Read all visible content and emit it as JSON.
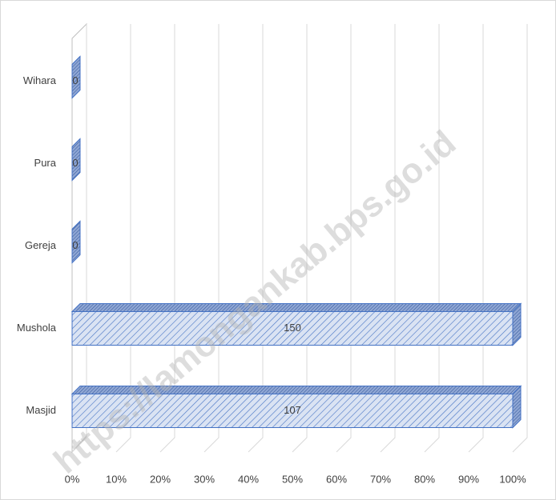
{
  "chart_data": {
    "type": "bar",
    "orientation": "horizontal",
    "stacking": "percent",
    "categories": [
      "Masjid",
      "Mushola",
      "Gereja",
      "Pura",
      "Wihara"
    ],
    "series": [
      {
        "color": "#4472c4",
        "values": [
          107,
          150,
          0,
          0,
          0
        ]
      }
    ],
    "xlim": [
      0,
      100
    ],
    "xticks": [
      {
        "value": 0,
        "label": "0%"
      },
      {
        "value": 10,
        "label": "10%"
      },
      {
        "value": 20,
        "label": "20%"
      },
      {
        "value": 30,
        "label": "30%"
      },
      {
        "value": 40,
        "label": "40%"
      },
      {
        "value": 50,
        "label": "50%"
      },
      {
        "value": 60,
        "label": "60%"
      },
      {
        "value": 70,
        "label": "70%"
      },
      {
        "value": 80,
        "label": "80%"
      },
      {
        "value": 90,
        "label": "90%"
      },
      {
        "value": 100,
        "label": "100%"
      }
    ],
    "grid": true,
    "watermark": "https://lamongankab.bps.go.id"
  }
}
